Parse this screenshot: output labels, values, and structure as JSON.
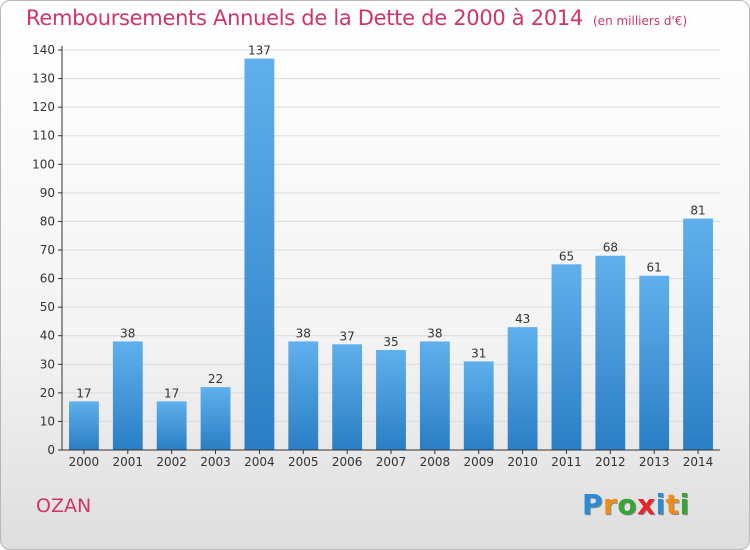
{
  "header": {
    "title": "Remboursements Annuels de la Dette de 2000 à 2014",
    "unit_note": "(en milliers d'€)"
  },
  "commune": "OZAN",
  "brand": {
    "name": "Proxiti",
    "letters": [
      {
        "ch": "P",
        "color": "#2a8bd6"
      },
      {
        "ch": "r",
        "color": "#f08c1a"
      },
      {
        "ch": "o",
        "color": "#36a436"
      },
      {
        "ch": "x",
        "color": "#e2262b"
      },
      {
        "ch": "i",
        "color": "#2a8bd6"
      },
      {
        "ch": "t",
        "color": "#f08c1a"
      },
      {
        "ch": "i",
        "color": "#36a436"
      }
    ]
  },
  "colors": {
    "accent": "#d0346a",
    "bar_top": "#5fb0ec",
    "bar_bottom": "#2a7ec4",
    "grid": "#d9d9d9",
    "axis": "#333333"
  },
  "chart_data": {
    "type": "bar",
    "title": "Remboursements Annuels de la Dette de 2000 à 2014",
    "subtitle": "(en milliers d'€)",
    "xlabel": "",
    "ylabel": "",
    "categories": [
      "2000",
      "2001",
      "2002",
      "2003",
      "2004",
      "2005",
      "2006",
      "2007",
      "2008",
      "2009",
      "2010",
      "2011",
      "2012",
      "2013",
      "2014"
    ],
    "values": [
      17,
      38,
      17,
      22,
      137,
      38,
      37,
      35,
      38,
      31,
      43,
      65,
      68,
      61,
      81
    ],
    "ylim": [
      0,
      140
    ],
    "yticks": [
      0,
      10,
      20,
      30,
      40,
      50,
      60,
      70,
      80,
      90,
      100,
      110,
      120,
      130,
      140
    ],
    "grid": true,
    "data_labels": true
  }
}
